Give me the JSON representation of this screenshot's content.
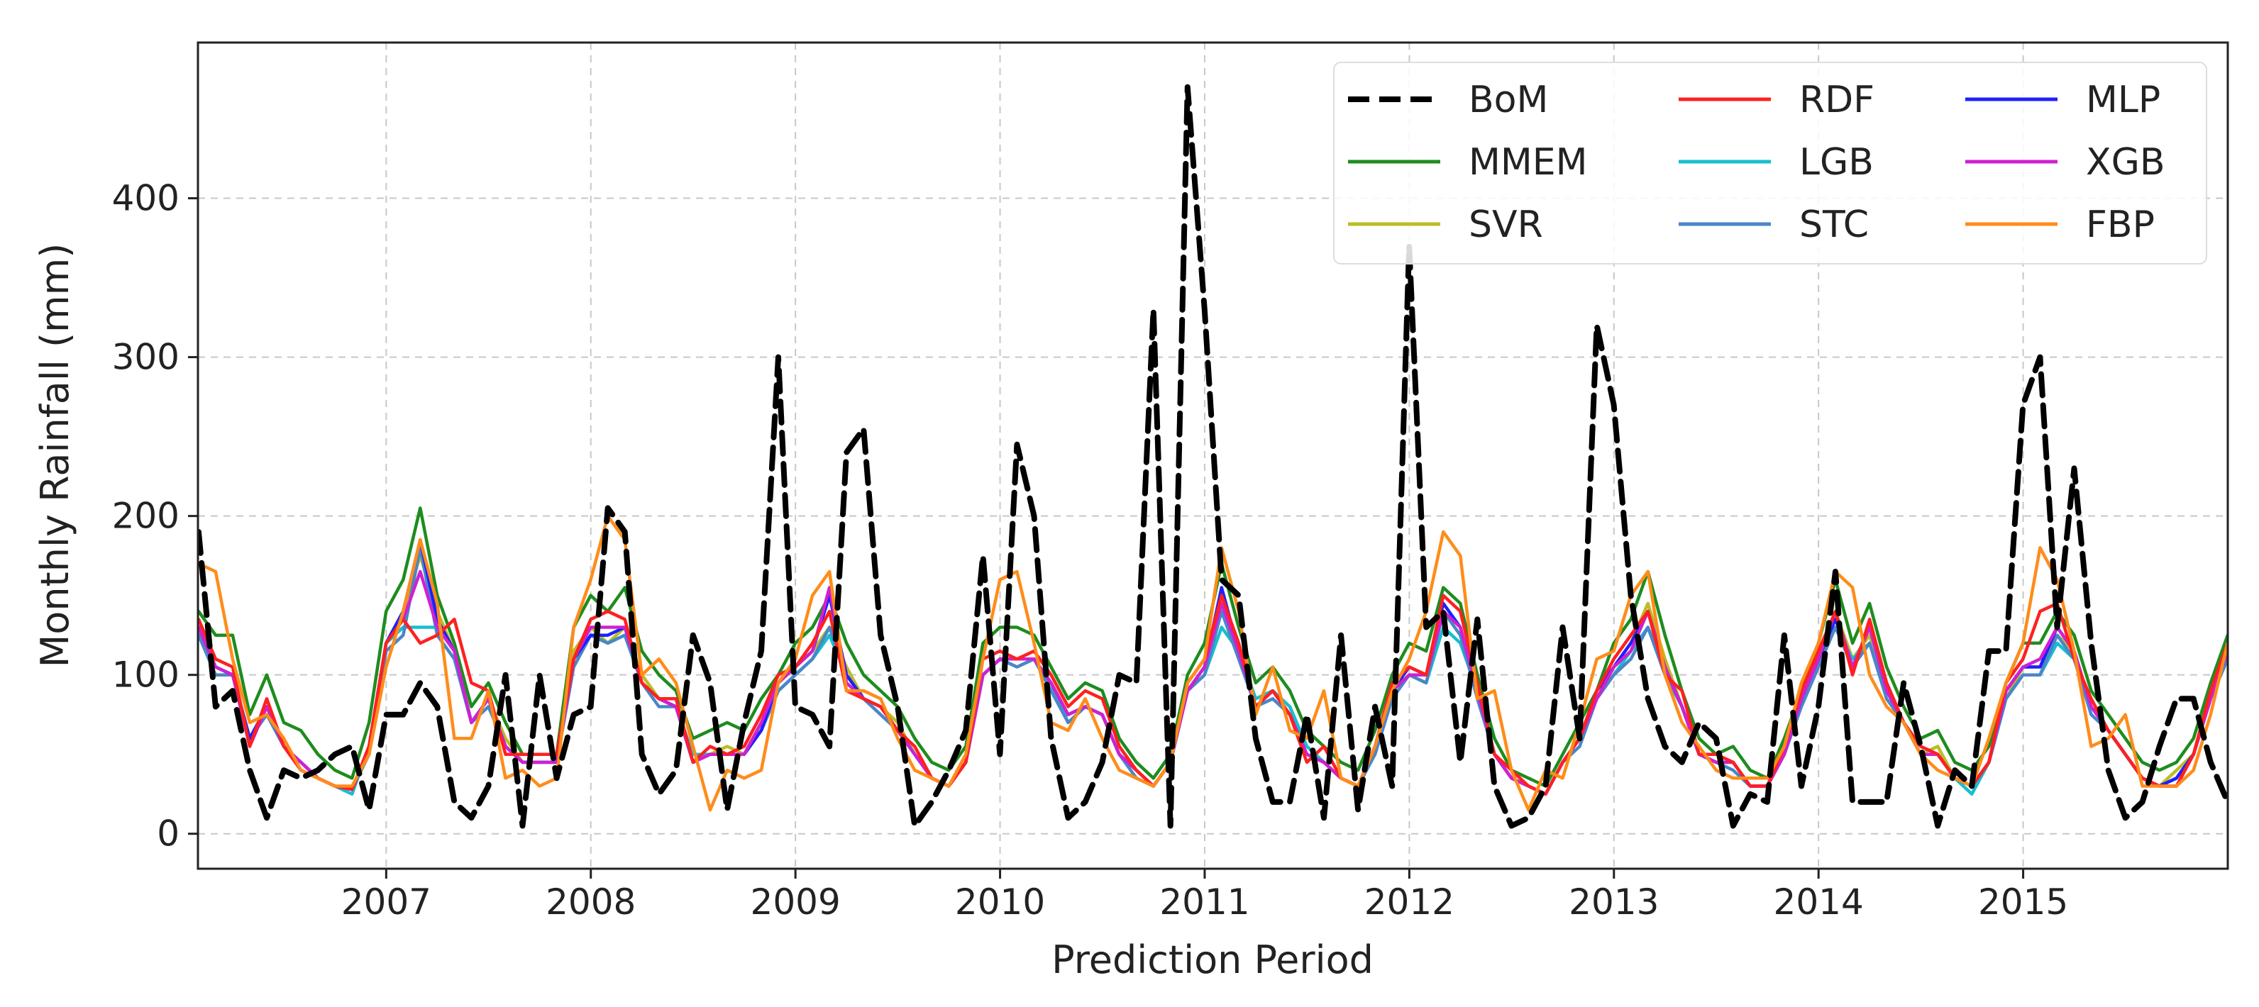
{
  "chart_data": {
    "type": "line",
    "title": "",
    "xlabel": "Prediction Period",
    "ylabel": "Monthly Rainfall (mm)",
    "xlim": [
      2006.08,
      2016.0
    ],
    "ylim": [
      -22,
      498
    ],
    "x_ticks": [
      2007,
      2008,
      2009,
      2010,
      2011,
      2012,
      2013,
      2014,
      2015
    ],
    "y_ticks": [
      0,
      100,
      200,
      300,
      400
    ],
    "grid": true,
    "legend": {
      "placement": "top-right",
      "columns": 3
    },
    "x_start": 2006.083,
    "x_step": 0.08333,
    "series": [
      {
        "name": "BoM",
        "color": "#000000",
        "dashed": true,
        "values": [
          190,
          80,
          90,
          40,
          10,
          40,
          35,
          40,
          50,
          55,
          15,
          75,
          75,
          95,
          80,
          20,
          10,
          30,
          100,
          5,
          100,
          35,
          75,
          80,
          205,
          190,
          50,
          25,
          40,
          125,
          95,
          15,
          70,
          115,
          300,
          80,
          75,
          55,
          240,
          255,
          125,
          80,
          5,
          20,
          40,
          65,
          175,
          50,
          245,
          200,
          60,
          10,
          20,
          45,
          100,
          95,
          330,
          5,
          470,
          330,
          160,
          150,
          60,
          20,
          20,
          75,
          10,
          125,
          15,
          80,
          30,
          370,
          130,
          140,
          45,
          135,
          30,
          5,
          10,
          30,
          130,
          60,
          320,
          270,
          150,
          85,
          55,
          45,
          70,
          60,
          5,
          25,
          20,
          125,
          30,
          80,
          165,
          20,
          20,
          20,
          95,
          55,
          5,
          40,
          30,
          115,
          115,
          270,
          300,
          130,
          230,
          120,
          40,
          10,
          20,
          55,
          85,
          85,
          45,
          20
        ]
      },
      {
        "name": "MMEM",
        "color": "#1e8c1e",
        "dashed": false,
        "values": [
          140,
          125,
          125,
          75,
          100,
          70,
          65,
          50,
          40,
          35,
          70,
          140,
          160,
          205,
          150,
          120,
          80,
          95,
          70,
          50,
          50,
          50,
          130,
          150,
          140,
          155,
          115,
          100,
          90,
          60,
          65,
          70,
          65,
          85,
          100,
          120,
          130,
          150,
          120,
          100,
          90,
          80,
          60,
          45,
          40,
          55,
          120,
          130,
          130,
          125,
          105,
          85,
          95,
          90,
          60,
          45,
          35,
          50,
          100,
          120,
          170,
          130,
          95,
          105,
          90,
          65,
          55,
          45,
          40,
          65,
          100,
          120,
          115,
          155,
          145,
          100,
          60,
          40,
          35,
          30,
          50,
          70,
          90,
          120,
          135,
          165,
          125,
          90,
          60,
          50,
          55,
          40,
          35,
          60,
          90,
          120,
          160,
          120,
          145,
          105,
          80,
          60,
          65,
          45,
          40,
          55,
          95,
          120,
          120,
          140,
          125,
          90,
          75,
          60,
          45,
          40,
          45,
          60,
          95,
          125
        ]
      },
      {
        "name": "SVR",
        "color": "#bcbd22",
        "dashed": false,
        "values": [
          130,
          105,
          100,
          60,
          80,
          55,
          45,
          35,
          30,
          28,
          55,
          120,
          140,
          175,
          140,
          115,
          70,
          85,
          60,
          45,
          45,
          45,
          115,
          130,
          120,
          130,
          100,
          85,
          80,
          50,
          50,
          55,
          50,
          70,
          95,
          105,
          115,
          130,
          105,
          85,
          80,
          70,
          50,
          35,
          30,
          45,
          100,
          110,
          110,
          110,
          95,
          75,
          80,
          75,
          50,
          40,
          30,
          45,
          90,
          105,
          145,
          115,
          85,
          90,
          80,
          55,
          45,
          35,
          30,
          55,
          90,
          105,
          100,
          140,
          130,
          90,
          50,
          35,
          30,
          25,
          45,
          60,
          85,
          105,
          120,
          145,
          110,
          80,
          50,
          45,
          45,
          30,
          30,
          50,
          85,
          110,
          140,
          110,
          125,
          90,
          70,
          50,
          55,
          35,
          30,
          45,
          85,
          105,
          105,
          125,
          115,
          80,
          65,
          50,
          35,
          30,
          40,
          50,
          85,
          115
        ]
      },
      {
        "name": "RDF",
        "color": "#ff2020",
        "dashed": false,
        "values": [
          135,
          110,
          105,
          55,
          85,
          55,
          40,
          35,
          30,
          28,
          55,
          120,
          135,
          120,
          125,
          135,
          95,
          90,
          50,
          50,
          50,
          50,
          110,
          135,
          140,
          135,
          95,
          85,
          85,
          45,
          55,
          50,
          55,
          75,
          100,
          105,
          120,
          140,
          90,
          85,
          80,
          65,
          55,
          35,
          30,
          45,
          110,
          115,
          110,
          115,
          100,
          80,
          90,
          85,
          55,
          40,
          30,
          45,
          95,
          110,
          150,
          120,
          80,
          90,
          75,
          45,
          55,
          35,
          30,
          55,
          95,
          105,
          100,
          150,
          140,
          95,
          50,
          40,
          30,
          25,
          45,
          60,
          90,
          110,
          125,
          140,
          100,
          90,
          50,
          50,
          45,
          30,
          30,
          55,
          90,
          115,
          140,
          100,
          135,
          95,
          70,
          55,
          50,
          35,
          30,
          45,
          95,
          110,
          140,
          145,
          110,
          85,
          65,
          50,
          35,
          30,
          30,
          50,
          90,
          120
        ]
      },
      {
        "name": "LGB",
        "color": "#17becf",
        "dashed": false,
        "values": [
          125,
          105,
          100,
          60,
          80,
          55,
          45,
          35,
          30,
          25,
          55,
          120,
          130,
          130,
          130,
          115,
          70,
          85,
          55,
          45,
          45,
          45,
          110,
          125,
          120,
          125,
          95,
          85,
          80,
          50,
          50,
          50,
          50,
          65,
          90,
          100,
          110,
          125,
          100,
          85,
          80,
          65,
          50,
          35,
          30,
          45,
          100,
          110,
          105,
          110,
          95,
          70,
          80,
          75,
          50,
          40,
          30,
          45,
          90,
          100,
          130,
          115,
          85,
          90,
          80,
          55,
          45,
          35,
          30,
          55,
          90,
          100,
          95,
          130,
          120,
          90,
          50,
          35,
          30,
          25,
          45,
          60,
          85,
          100,
          115,
          130,
          105,
          80,
          50,
          45,
          45,
          30,
          30,
          50,
          85,
          105,
          130,
          110,
          120,
          90,
          70,
          50,
          50,
          35,
          25,
          45,
          85,
          100,
          100,
          120,
          110,
          80,
          65,
          50,
          35,
          30,
          35,
          50,
          85,
          110
        ]
      },
      {
        "name": "STC",
        "color": "#4a86c8",
        "dashed": false,
        "values": [
          125,
          100,
          100,
          60,
          75,
          55,
          45,
          35,
          30,
          28,
          50,
          115,
          125,
          180,
          125,
          110,
          70,
          80,
          55,
          45,
          45,
          45,
          105,
          125,
          120,
          125,
          95,
          80,
          80,
          45,
          50,
          50,
          50,
          65,
          90,
          100,
          110,
          130,
          100,
          85,
          75,
          65,
          50,
          35,
          30,
          45,
          100,
          110,
          105,
          110,
          90,
          70,
          80,
          75,
          50,
          35,
          30,
          45,
          90,
          100,
          140,
          110,
          80,
          85,
          75,
          50,
          45,
          35,
          30,
          50,
          85,
          100,
          95,
          140,
          125,
          85,
          50,
          35,
          30,
          25,
          45,
          55,
          85,
          100,
          110,
          130,
          100,
          80,
          50,
          45,
          40,
          30,
          30,
          50,
          80,
          105,
          130,
          105,
          120,
          85,
          70,
          50,
          50,
          35,
          30,
          45,
          85,
          100,
          100,
          125,
          110,
          75,
          65,
          50,
          35,
          30,
          35,
          50,
          85,
          110
        ]
      },
      {
        "name": "MLP",
        "color": "#1f1fff",
        "dashed": false,
        "values": [
          130,
          105,
          100,
          60,
          80,
          55,
          45,
          35,
          30,
          28,
          55,
          120,
          140,
          185,
          135,
          115,
          70,
          85,
          55,
          45,
          45,
          45,
          110,
          125,
          125,
          130,
          95,
          85,
          80,
          45,
          50,
          50,
          50,
          65,
          95,
          105,
          115,
          150,
          100,
          85,
          80,
          65,
          50,
          35,
          30,
          45,
          100,
          110,
          110,
          110,
          95,
          75,
          80,
          75,
          50,
          40,
          30,
          45,
          90,
          105,
          155,
          115,
          80,
          90,
          75,
          50,
          45,
          35,
          30,
          55,
          90,
          105,
          100,
          145,
          130,
          90,
          50,
          35,
          30,
          25,
          45,
          60,
          90,
          105,
          120,
          140,
          105,
          80,
          50,
          45,
          45,
          30,
          30,
          50,
          85,
          110,
          135,
          105,
          130,
          95,
          70,
          55,
          50,
          35,
          30,
          45,
          90,
          105,
          105,
          130,
          115,
          80,
          65,
          50,
          35,
          30,
          35,
          50,
          85,
          115
        ]
      },
      {
        "name": "XGB",
        "color": "#d020d0",
        "dashed": false,
        "values": [
          130,
          105,
          100,
          55,
          80,
          55,
          45,
          35,
          30,
          28,
          55,
          120,
          135,
          165,
          130,
          115,
          70,
          85,
          55,
          45,
          45,
          45,
          110,
          130,
          130,
          130,
          95,
          85,
          80,
          45,
          50,
          50,
          50,
          70,
          95,
          105,
          115,
          155,
          95,
          85,
          80,
          65,
          50,
          35,
          30,
          45,
          100,
          110,
          110,
          110,
          95,
          75,
          80,
          75,
          50,
          40,
          30,
          45,
          90,
          105,
          145,
          115,
          80,
          90,
          75,
          50,
          45,
          35,
          30,
          55,
          90,
          100,
          100,
          140,
          130,
          90,
          50,
          35,
          30,
          25,
          45,
          60,
          85,
          105,
          115,
          140,
          105,
          80,
          50,
          45,
          45,
          30,
          30,
          50,
          85,
          110,
          140,
          105,
          130,
          90,
          70,
          50,
          50,
          35,
          30,
          45,
          90,
          105,
          110,
          130,
          115,
          80,
          65,
          50,
          35,
          30,
          30,
          50,
          85,
          115
        ]
      },
      {
        "name": "FBP",
        "color": "#ff8c1a",
        "dashed": false,
        "values": [
          170,
          165,
          110,
          70,
          75,
          60,
          40,
          35,
          30,
          30,
          50,
          105,
          140,
          185,
          145,
          60,
          60,
          90,
          35,
          40,
          30,
          35,
          130,
          160,
          200,
          185,
          100,
          110,
          95,
          55,
          15,
          40,
          35,
          40,
          95,
          110,
          150,
          165,
          90,
          90,
          85,
          60,
          40,
          35,
          30,
          50,
          110,
          160,
          165,
          120,
          70,
          65,
          85,
          60,
          40,
          35,
          30,
          45,
          95,
          110,
          180,
          140,
          75,
          105,
          65,
          60,
          90,
          35,
          30,
          55,
          90,
          110,
          140,
          190,
          175,
          85,
          90,
          40,
          15,
          40,
          35,
          70,
          110,
          115,
          150,
          165,
          100,
          70,
          55,
          40,
          35,
          35,
          35,
          55,
          95,
          120,
          165,
          155,
          100,
          80,
          70,
          50,
          40,
          35,
          30,
          60,
          95,
          120,
          180,
          160,
          115,
          55,
          60,
          75,
          30,
          30,
          30,
          40,
          75,
          120
        ]
      }
    ]
  }
}
